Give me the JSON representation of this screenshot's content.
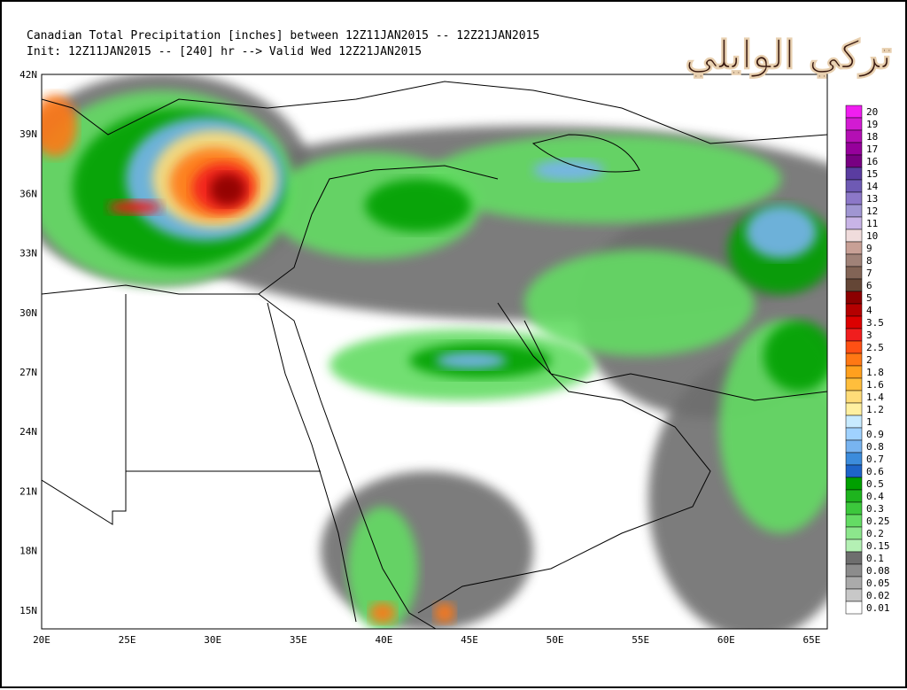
{
  "header": {
    "line1": "Canadian Total Precipitation [inches] between 12Z11JAN2015 -- 12Z21JAN2015",
    "line2": "Init: 12Z11JAN2015 -- [240] hr --> Valid Wed 12Z21JAN2015"
  },
  "watermark": "تركي الوايلي",
  "map": {
    "lat_labels": [
      "42N",
      "39N",
      "36N",
      "33N",
      "30N",
      "27N",
      "24N",
      "21N",
      "18N",
      "15N"
    ],
    "lon_labels": [
      "20E",
      "25E",
      "30E",
      "35E",
      "40E",
      "45E",
      "50E",
      "55E",
      "60E",
      "65E"
    ]
  },
  "legend": {
    "levels": [
      {
        "label": "20",
        "color": "#f01ef0"
      },
      {
        "label": "19",
        "color": "#d21bd2"
      },
      {
        "label": "18",
        "color": "#b40fb4"
      },
      {
        "label": "17",
        "color": "#96009b"
      },
      {
        "label": "16",
        "color": "#780082"
      },
      {
        "label": "15",
        "color": "#5a3ca0"
      },
      {
        "label": "14",
        "color": "#6e5ab4"
      },
      {
        "label": "13",
        "color": "#8c78c8"
      },
      {
        "label": "12",
        "color": "#a096d2"
      },
      {
        "label": "11",
        "color": "#c8b4e6"
      },
      {
        "label": "10",
        "color": "#f0dcdc"
      },
      {
        "label": "9",
        "color": "#c8a096"
      },
      {
        "label": "8",
        "color": "#a08278"
      },
      {
        "label": "7",
        "color": "#826456"
      },
      {
        "label": "6",
        "color": "#644636"
      },
      {
        "label": "5",
        "color": "#8c0000"
      },
      {
        "label": "4",
        "color": "#b40000"
      },
      {
        "label": "3.5",
        "color": "#dc0000"
      },
      {
        "label": "3",
        "color": "#f01e1e"
      },
      {
        "label": "2.5",
        "color": "#ff5014"
      },
      {
        "label": "2",
        "color": "#ff7814"
      },
      {
        "label": "1.8",
        "color": "#ffa01e"
      },
      {
        "label": "1.6",
        "color": "#ffbe3c"
      },
      {
        "label": "1.4",
        "color": "#ffdc78"
      },
      {
        "label": "1.2",
        "color": "#fff0a0"
      },
      {
        "label": "1",
        "color": "#c8ebff"
      },
      {
        "label": "0.9",
        "color": "#a0d2ff"
      },
      {
        "label": "0.8",
        "color": "#78b4f0"
      },
      {
        "label": "0.7",
        "color": "#3c8cdc"
      },
      {
        "label": "0.6",
        "color": "#1e64c8"
      },
      {
        "label": "0.5",
        "color": "#00a000"
      },
      {
        "label": "0.4",
        "color": "#1eb41e"
      },
      {
        "label": "0.3",
        "color": "#3cc83c"
      },
      {
        "label": "0.25",
        "color": "#64dc64"
      },
      {
        "label": "0.2",
        "color": "#8ce68c"
      },
      {
        "label": "0.15",
        "color": "#b4f0b4"
      },
      {
        "label": "0.1",
        "color": "#6e6e6e"
      },
      {
        "label": "0.08",
        "color": "#8c8c8c"
      },
      {
        "label": "0.05",
        "color": "#aaaaaa"
      },
      {
        "label": "0.02",
        "color": "#c8c8c8"
      },
      {
        "label": "0.01",
        "color": "#ffffff"
      }
    ]
  }
}
